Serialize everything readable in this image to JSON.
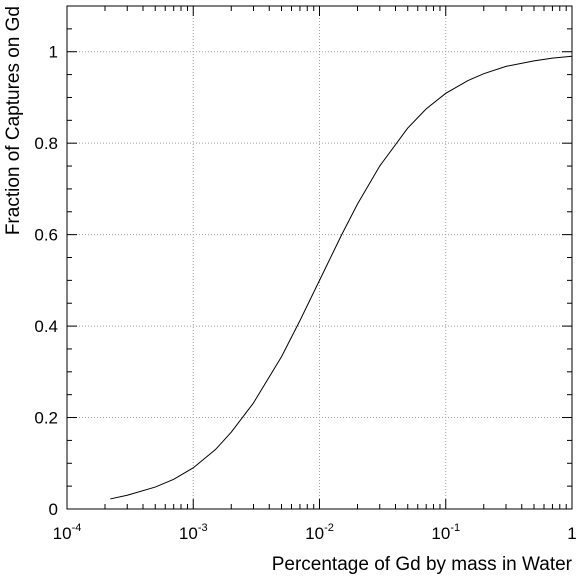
{
  "chart_data": {
    "type": "line",
    "xscale": "log",
    "xlim": [
      0.0001,
      1
    ],
    "ylim": [
      0,
      1.1
    ],
    "xlabel": "Percentage of Gd by mass in Water",
    "ylabel": "Fraction of Captures on Gd",
    "grid": true,
    "x_ticks": [
      {
        "base": "10",
        "exp": "-4"
      },
      {
        "base": "10",
        "exp": "-3"
      },
      {
        "base": "10",
        "exp": "-2"
      },
      {
        "base": "10",
        "exp": "-1"
      },
      {
        "base": "1",
        "exp": ""
      }
    ],
    "y_ticks": [
      "0",
      "0.2",
      "0.4",
      "0.6",
      "0.8",
      "1"
    ],
    "series": [
      {
        "color": "#000000",
        "x": [
          0.00022,
          0.0003,
          0.0005,
          0.0007,
          0.001,
          0.0015,
          0.002,
          0.003,
          0.005,
          0.007,
          0.01,
          0.015,
          0.02,
          0.03,
          0.05,
          0.07,
          0.1,
          0.15,
          0.2,
          0.3,
          0.5,
          0.7,
          1.0
        ],
        "y": [
          0.022,
          0.03,
          0.048,
          0.065,
          0.09,
          0.13,
          0.168,
          0.232,
          0.333,
          0.412,
          0.5,
          0.6,
          0.667,
          0.75,
          0.833,
          0.875,
          0.909,
          0.937,
          0.952,
          0.968,
          0.98,
          0.986,
          0.99
        ]
      }
    ]
  }
}
